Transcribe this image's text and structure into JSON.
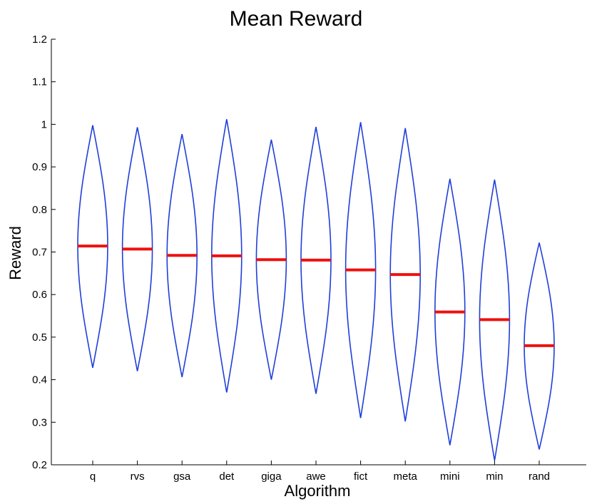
{
  "chart_data": {
    "type": "violin",
    "title": "Mean Reward",
    "xlabel": "Algorithm",
    "ylabel": "Reward",
    "ylim": [
      0.2,
      1.2
    ],
    "yticks": [
      "0.2",
      "0.3",
      "0.4",
      "0.5",
      "0.6",
      "0.7",
      "0.8",
      "0.9",
      "1",
      "1.1",
      "1.2"
    ],
    "categories": [
      "q",
      "rvs",
      "gsa",
      "det",
      "giga",
      "awe",
      "fict",
      "meta",
      "mini",
      "min",
      "rand"
    ],
    "mean": [
      0.714,
      0.707,
      0.692,
      0.691,
      0.682,
      0.681,
      0.658,
      0.647,
      0.559,
      0.541,
      0.48
    ],
    "min": [
      0.428,
      0.42,
      0.406,
      0.37,
      0.4,
      0.367,
      0.31,
      0.302,
      0.246,
      0.21,
      0.236
    ],
    "max": [
      0.998,
      0.993,
      0.977,
      1.012,
      0.964,
      0.994,
      1.005,
      0.991,
      0.872,
      0.87,
      0.722
    ],
    "grid": false,
    "colors": {
      "violin": "#1f3fd9",
      "mean": "#ee1111",
      "axis": "#000000"
    }
  }
}
